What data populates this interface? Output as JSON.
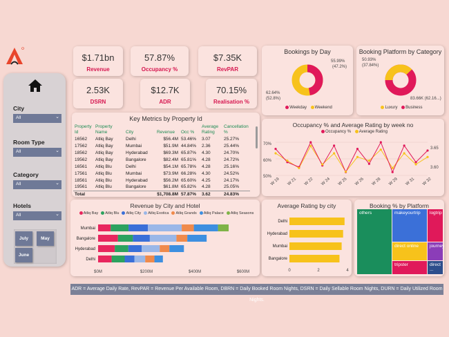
{
  "logo": {
    "name": "atliq-logo"
  },
  "kpis": [
    {
      "value": "$1.71bn",
      "label": "Revenue"
    },
    {
      "value": "57.87%",
      "label": "Occupancy %"
    },
    {
      "value": "$7.35K",
      "label": "RevPAR"
    },
    {
      "value": "2.53K",
      "label": "DSRN"
    },
    {
      "value": "$12.7K",
      "label": "ADR"
    },
    {
      "value": "70.15%",
      "label": "Realisation %"
    }
  ],
  "filters": {
    "city": {
      "label": "City",
      "value": "All"
    },
    "room_type": {
      "label": "Room Type",
      "value": "All"
    },
    "category": {
      "label": "Category",
      "value": "All"
    },
    "hotels": {
      "label": "Hotels",
      "value": "All"
    },
    "months": [
      "July",
      "May",
      "June"
    ]
  },
  "bookings_by_day": {
    "title": "Bookings by Day",
    "slice1": "55.99%",
    "slice1b": "(47.2%)",
    "slice2": "62.64%",
    "slice2b": "(52.8%)",
    "legend": [
      "Weekday",
      "Weekend"
    ]
  },
  "booking_platform_category": {
    "title": "Booking Platform by Category",
    "slice1": "50.93%",
    "slice1b": "(37.84%)",
    "slice2": "83.66K (62.16...)",
    "legend": [
      "Luxury",
      "Business"
    ]
  },
  "key_metrics": {
    "title": "Key Metrics by Property Id",
    "headers": [
      "Property Id",
      "Property Name",
      "City",
      "Revenue",
      "Occ %",
      "Average Rating",
      "Cancellation %"
    ],
    "rows": [
      [
        "16562",
        "Atliq Bay",
        "Delhi",
        "$56.4M",
        "53.46%",
        "3.07",
        "25.27%"
      ],
      [
        "17562",
        "Atliq Bay",
        "Mumbai",
        "$51.9M",
        "44.84%",
        "2.36",
        "25.44%"
      ],
      [
        "18562",
        "Atliq Bay",
        "Hyderabad",
        "$69.3M",
        "65.87%",
        "4.30",
        "24.70%"
      ],
      [
        "19562",
        "Atliq Bay",
        "Bangalore",
        "$82.4M",
        "65.81%",
        "4.28",
        "24.72%"
      ],
      [
        "16561",
        "Atliq Blu",
        "Delhi",
        "$54.1M",
        "65.78%",
        "4.28",
        "25.16%"
      ],
      [
        "17561",
        "Atliq Blu",
        "Mumbai",
        "$73.9M",
        "66.28%",
        "4.30",
        "24.52%"
      ],
      [
        "18561",
        "Atliq Blu",
        "Hyderabad",
        "$56.2M",
        "65.60%",
        "4.25",
        "24.17%"
      ],
      [
        "19561",
        "Atliq Blu",
        "Bangalore",
        "$61.8M",
        "65.82%",
        "4.28",
        "25.05%"
      ]
    ],
    "total": [
      "Total",
      "",
      "",
      "$1,708.8M",
      "57.87%",
      "3.62",
      "24.83%"
    ]
  },
  "occupancy_rating": {
    "title": "Occupancy % and Average Rating by week no",
    "legend": [
      "Occupancy %",
      "Average Rating"
    ],
    "y_left": [
      "70%",
      "60%",
      "50%"
    ],
    "y_right": [
      "3.65",
      "3.60"
    ],
    "weeks": [
      "W 19",
      "W 21",
      "W 22",
      "W 24",
      "W 25",
      "W 26",
      "W 28",
      "W 29",
      "W 31",
      "W 32"
    ]
  },
  "revenue_city_hotel": {
    "title": "Revenue by City and Hotel",
    "legend": [
      "Atliq Bay",
      "Atliq Blu",
      "Atliq City",
      "Atliq Exotica",
      "Atliq Grands",
      "Atliq Palace",
      "Atliq Seasons"
    ],
    "cities": [
      "Mumbai",
      "Bangalore",
      "Hyderabad",
      "Delhi"
    ],
    "x_ticks": [
      "$0M",
      "$200M",
      "$400M",
      "$600M"
    ]
  },
  "avg_rating_city": {
    "title": "Average Rating by city",
    "cities": [
      "Delhi",
      "Hyderabad",
      "Mumbai",
      "Bangalore"
    ],
    "x_ticks": [
      "0",
      "2",
      "4"
    ]
  },
  "booking_platform": {
    "title": "Booking % by Platform",
    "cells": [
      "others",
      "makeyourtrip",
      "logtrip",
      "direct online",
      "journey",
      "tripster",
      "direct ..."
    ]
  },
  "colors": {
    "crimson": "#e0195a",
    "yellow": "#f7c21b",
    "bay": "#e8265e",
    "blu": "#2ca25f",
    "city": "#3a6fd8",
    "exotica": "#9ab7e8",
    "grands": "#f08a4b",
    "palace": "#3d8fe0",
    "seasons": "#7fb347"
  },
  "chart_data": [
    {
      "type": "pie",
      "title": "Bookings by Day",
      "categories": [
        "Weekday",
        "Weekend"
      ],
      "values": [
        52.8,
        47.2
      ]
    },
    {
      "type": "pie",
      "title": "Booking Platform by Category",
      "categories": [
        "Luxury",
        "Business"
      ],
      "values": [
        37.84,
        62.16
      ]
    },
    {
      "type": "line",
      "title": "Occupancy % and Average Rating by week no",
      "x": [
        19,
        20,
        21,
        22,
        23,
        24,
        25,
        26,
        27,
        28,
        29,
        30,
        31,
        32
      ],
      "series": [
        {
          "name": "Occupancy %",
          "values": [
            66,
            58,
            55,
            70,
            56,
            68,
            52,
            66,
            57,
            70,
            52,
            68,
            58,
            65
          ]
        },
        {
          "name": "Average Rating",
          "values": [
            3.64,
            3.62,
            3.6,
            3.66,
            3.61,
            3.64,
            3.59,
            3.63,
            3.62,
            3.65,
            3.6,
            3.64,
            3.61,
            3.63
          ]
        }
      ],
      "ylim": [
        50,
        70
      ]
    },
    {
      "type": "bar",
      "title": "Revenue by City and Hotel",
      "categories": [
        "Mumbai",
        "Bangalore",
        "Hyderabad",
        "Delhi"
      ],
      "series": [
        {
          "name": "Atliq Bay",
          "values": [
            52,
            82,
            69,
            56
          ]
        },
        {
          "name": "Atliq Blu",
          "values": [
            74,
            62,
            56,
            54
          ]
        },
        {
          "name": "Atliq City",
          "values": [
            80,
            70,
            55,
            40
          ]
        },
        {
          "name": "Atliq Exotica",
          "values": [
            140,
            110,
            75,
            45
          ]
        },
        {
          "name": "Atliq Grands",
          "values": [
            50,
            45,
            40,
            38
          ]
        },
        {
          "name": "Atliq Palace",
          "values": [
            100,
            80,
            60,
            35
          ]
        },
        {
          "name": "Atliq Seasons",
          "values": [
            44,
            0,
            0,
            0
          ]
        }
      ],
      "xlim": [
        0,
        600
      ]
    },
    {
      "type": "bar",
      "title": "Average Rating by city",
      "categories": [
        "Delhi",
        "Hyderabad",
        "Mumbai",
        "Bangalore"
      ],
      "values": [
        3.8,
        3.7,
        3.6,
        3.45
      ],
      "xlim": [
        0,
        4
      ]
    },
    {
      "type": "table",
      "title": "Booking % by Platform",
      "categories": [
        "others",
        "makeyourtrip",
        "logtrip",
        "direct online",
        "journey",
        "tripster",
        "direct offline"
      ]
    }
  ],
  "footnote": "ADR = Average Daily Rate, RevPAR = Revenue Per Available Room, DBRN = Daily Booked Room Nights, DSRN = Daily Sellable Room Nights, DURN = Daily Utilized Room Nights."
}
